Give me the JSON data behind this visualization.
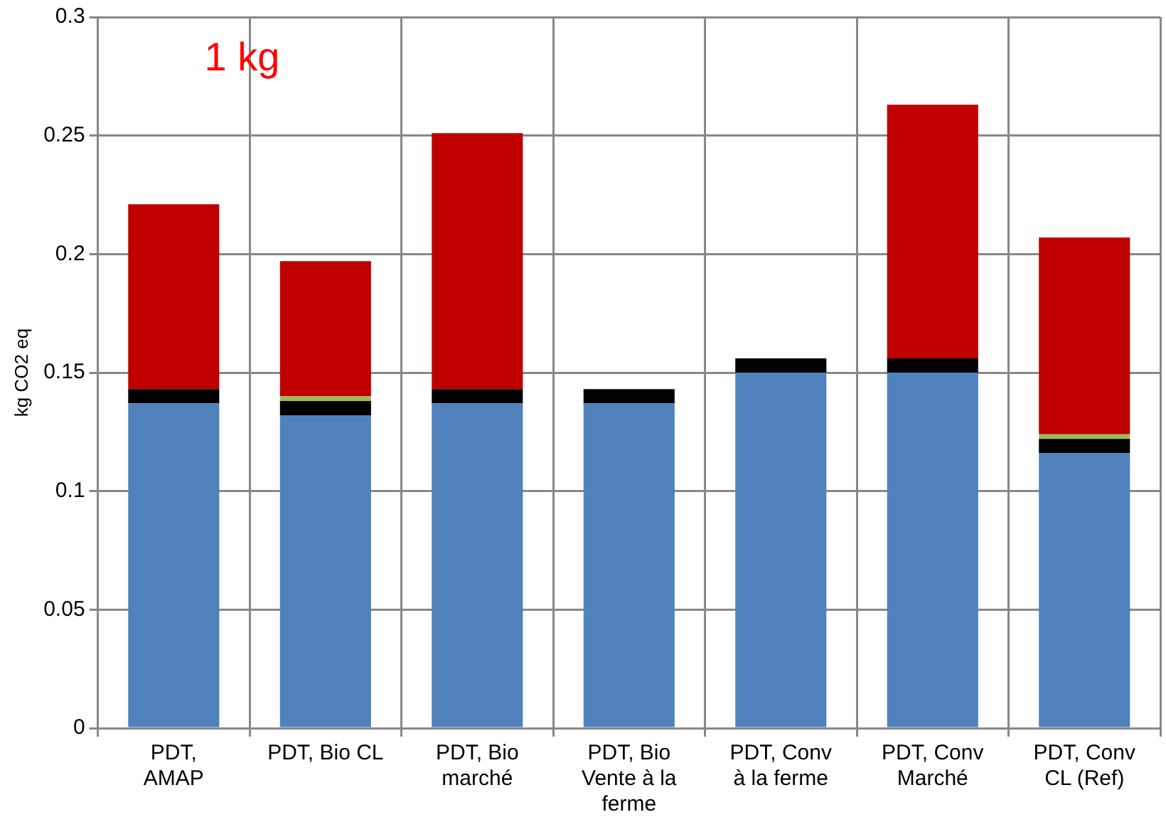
{
  "chart_data": {
    "type": "bar",
    "stacked": true,
    "ylabel": "kg CO2 eq",
    "annotations": [
      "1 kg"
    ],
    "categories": [
      "PDT,\nAMAP",
      "PDT, Bio CL",
      "PDT, Bio\nmarché",
      "PDT, Bio\nVente à la\nferme",
      "PDT, Conv\nà la ferme",
      "PDT, Conv\nMarché",
      "PDT, Conv\nCL (Ref)"
    ],
    "series": [
      {
        "color": "#4f81bd",
        "values": [
          0.137,
          0.132,
          0.137,
          0.137,
          0.15,
          0.15,
          0.116
        ]
      },
      {
        "color": "#000000",
        "values": [
          0.006,
          0.006,
          0.006,
          0.006,
          0.006,
          0.006,
          0.006
        ]
      },
      {
        "color": "#9bbb59",
        "values": [
          null,
          0.002,
          null,
          null,
          null,
          null,
          0.002
        ]
      },
      {
        "color": "#c00000",
        "values": [
          0.078,
          0.057,
          0.108,
          null,
          null,
          0.107,
          0.083
        ]
      }
    ],
    "ylim": [
      0,
      0.3
    ],
    "yticks": [
      0,
      0.05,
      0.1,
      0.15,
      0.2,
      0.25,
      0.3
    ],
    "grid": true,
    "legend": false
  }
}
